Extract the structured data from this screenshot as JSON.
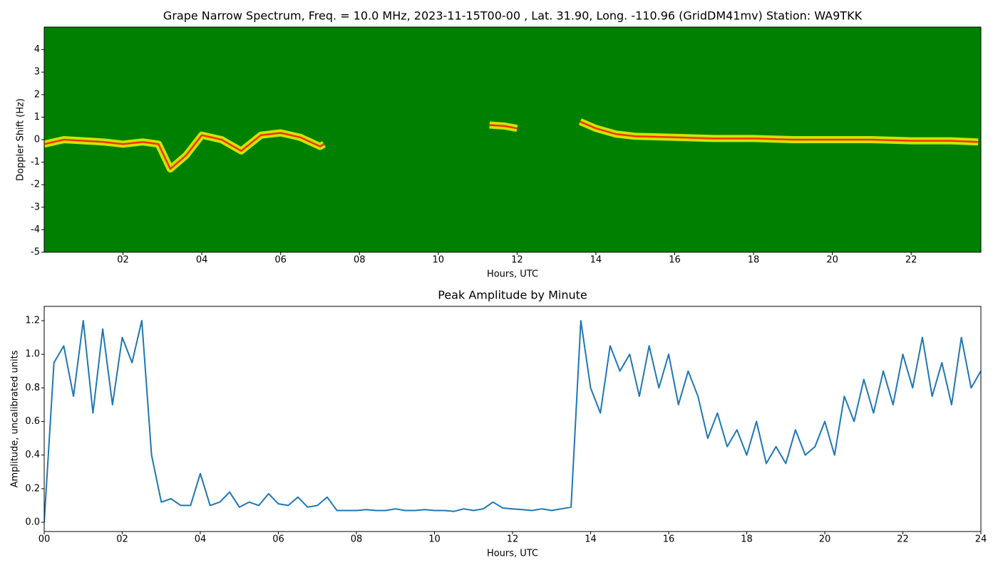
{
  "chart_data": [
    {
      "type": "spectrogram",
      "title": "Grape Narrow Spectrum, Freq. = 10.0 MHz, 2023-11-15T00-00 , Lat.  31.90, Long. -110.96 (GridDM41mv) Station: WA9TKK",
      "xlabel": "Hours, UTC",
      "ylabel": "Doppler Shift (Hz)",
      "background": "#008000",
      "x": [
        0,
        0.5,
        1,
        1.5,
        2,
        2.5,
        2.9,
        3.2,
        3.6,
        4,
        4.5,
        5,
        5.5,
        6,
        6.5,
        7,
        7.1,
        7.6,
        11.3,
        11.7,
        12.0,
        12.5,
        13.6,
        14,
        14.5,
        15,
        16,
        17,
        18,
        19,
        20,
        21,
        22,
        23,
        23.7
      ],
      "series": [
        {
          "name": "Doppler trace",
          "color": "#ff3000",
          "glow": "#ffff00",
          "values": [
            -0.2,
            0.0,
            -0.05,
            -0.1,
            -0.2,
            -0.1,
            -0.2,
            -1.3,
            -0.7,
            0.2,
            0.0,
            -0.5,
            0.2,
            0.3,
            0.1,
            -0.3,
            -0.2,
            null,
            0.65,
            0.6,
            0.5,
            null,
            0.8,
            0.5,
            0.25,
            0.15,
            0.1,
            0.05,
            0.05,
            0.0,
            0.0,
            0.0,
            -0.05,
            -0.05,
            -0.1
          ]
        }
      ],
      "xlim": [
        0,
        23.77
      ],
      "ylim": [
        -5,
        5
      ],
      "xticks": [
        {
          "value": 2,
          "label": "02"
        },
        {
          "value": 4,
          "label": "04"
        },
        {
          "value": 6,
          "label": "06"
        },
        {
          "value": 8,
          "label": "08"
        },
        {
          "value": 10,
          "label": "10"
        },
        {
          "value": 12,
          "label": "12"
        },
        {
          "value": 14,
          "label": "14"
        },
        {
          "value": 16,
          "label": "16"
        },
        {
          "value": 18,
          "label": "18"
        },
        {
          "value": 20,
          "label": "20"
        },
        {
          "value": 22,
          "label": "22"
        }
      ],
      "yticks": [
        -5,
        -4,
        -3,
        -2,
        -1,
        0,
        1,
        2,
        3,
        4
      ]
    },
    {
      "type": "line",
      "title": "Peak Amplitude by Minute",
      "xlabel": "Hours, UTC",
      "ylabel": "Amplitude, uncalibrated units",
      "x": [
        0,
        0.25,
        0.5,
        0.75,
        1,
        1.25,
        1.5,
        1.75,
        2,
        2.25,
        2.5,
        2.75,
        3,
        3.25,
        3.5,
        3.75,
        4,
        4.25,
        4.5,
        4.75,
        5,
        5.25,
        5.5,
        5.75,
        6,
        6.25,
        6.5,
        6.75,
        7,
        7.25,
        7.5,
        7.75,
        8,
        8.25,
        8.5,
        8.75,
        9,
        9.25,
        9.5,
        9.75,
        10,
        10.25,
        10.5,
        10.75,
        11,
        11.25,
        11.5,
        11.75,
        12,
        12.25,
        12.5,
        12.75,
        13,
        13.25,
        13.5,
        13.75,
        14,
        14.25,
        14.5,
        14.75,
        15,
        15.25,
        15.5,
        15.75,
        16,
        16.25,
        16.5,
        16.75,
        17,
        17.25,
        17.5,
        17.75,
        18,
        18.25,
        18.5,
        18.75,
        19,
        19.25,
        19.5,
        19.75,
        20,
        20.25,
        20.5,
        20.75,
        21,
        21.25,
        21.5,
        21.75,
        22,
        22.25,
        22.5,
        22.75,
        23,
        23.25,
        23.5,
        23.75,
        24
      ],
      "series": [
        {
          "name": "Peak amplitude",
          "color": "#1f77b4",
          "values": [
            0.0,
            0.95,
            1.05,
            0.75,
            1.2,
            0.65,
            1.15,
            0.7,
            1.1,
            0.95,
            1.2,
            0.4,
            0.12,
            0.14,
            0.1,
            0.1,
            0.29,
            0.1,
            0.12,
            0.18,
            0.09,
            0.12,
            0.1,
            0.17,
            0.11,
            0.1,
            0.15,
            0.09,
            0.1,
            0.15,
            0.07,
            0.07,
            0.07,
            0.075,
            0.07,
            0.07,
            0.08,
            0.07,
            0.07,
            0.075,
            0.07,
            0.07,
            0.065,
            0.08,
            0.07,
            0.08,
            0.12,
            0.085,
            0.08,
            0.075,
            0.07,
            0.08,
            0.07,
            0.08,
            0.09,
            1.2,
            0.8,
            0.65,
            1.05,
            0.9,
            1.0,
            0.75,
            1.05,
            0.8,
            1.0,
            0.7,
            0.9,
            0.75,
            0.5,
            0.65,
            0.45,
            0.55,
            0.4,
            0.6,
            0.35,
            0.45,
            0.35,
            0.55,
            0.4,
            0.45,
            0.6,
            0.4,
            0.75,
            0.6,
            0.85,
            0.65,
            0.9,
            0.7,
            1.0,
            0.8,
            1.1,
            0.75,
            0.95,
            0.7,
            1.1,
            0.8,
            0.9
          ]
        }
      ],
      "xlim": [
        0,
        24
      ],
      "ylim": [
        -0.055,
        1.285
      ],
      "xticks": [
        {
          "value": 0,
          "label": "00"
        },
        {
          "value": 2,
          "label": "02"
        },
        {
          "value": 4,
          "label": "04"
        },
        {
          "value": 6,
          "label": "06"
        },
        {
          "value": 8,
          "label": "08"
        },
        {
          "value": 10,
          "label": "10"
        },
        {
          "value": 12,
          "label": "12"
        },
        {
          "value": 14,
          "label": "14"
        },
        {
          "value": 16,
          "label": "16"
        },
        {
          "value": 18,
          "label": "18"
        },
        {
          "value": 20,
          "label": "20"
        },
        {
          "value": 22,
          "label": "22"
        },
        {
          "value": 24,
          "label": "24"
        }
      ],
      "yticks": [
        {
          "value": 0,
          "label": "0.0"
        },
        0.2,
        0.4,
        0.6,
        0.8,
        {
          "value": 1,
          "label": "1.0"
        },
        1.2
      ]
    }
  ]
}
